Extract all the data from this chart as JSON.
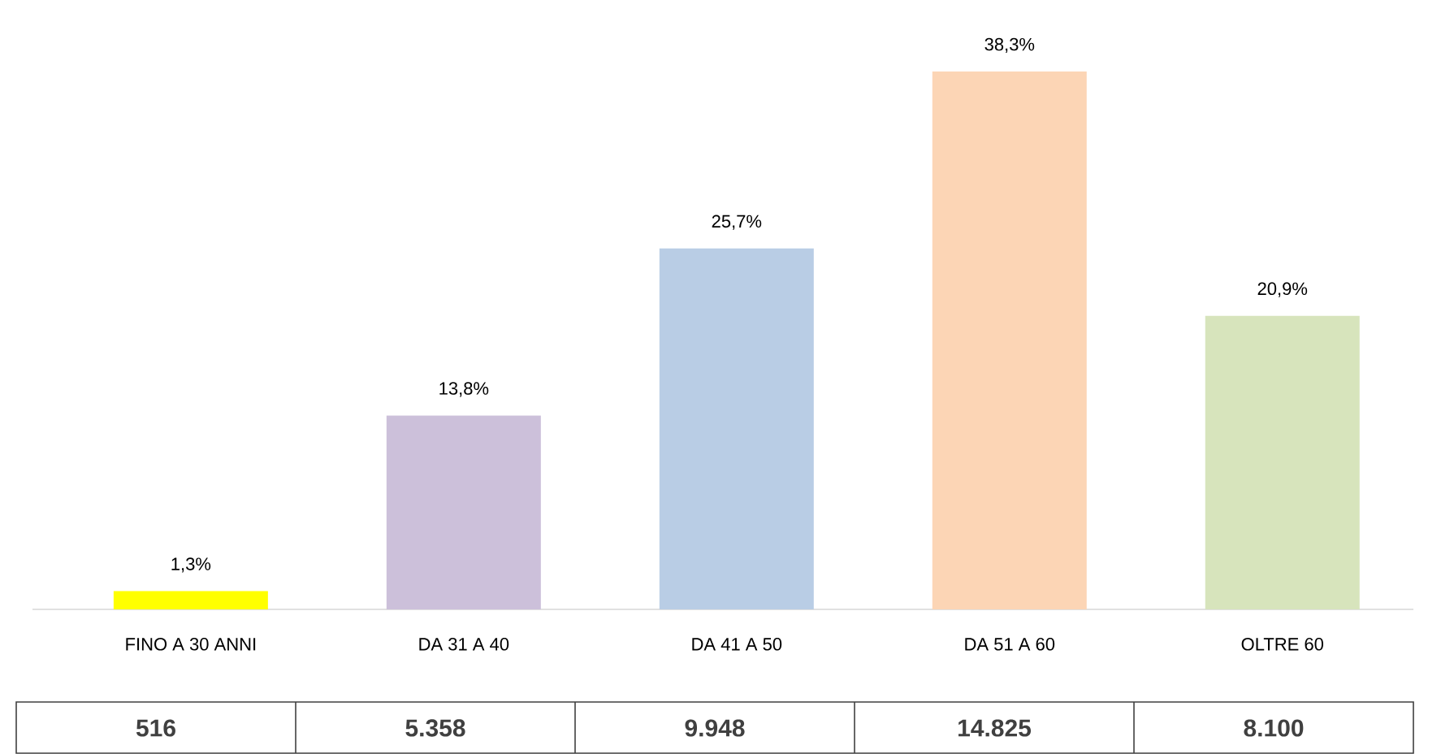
{
  "chart_data": {
    "type": "bar",
    "categories": [
      "FINO A 30 ANNI",
      "DA 31 A 40",
      "DA 41 A 50",
      "DA 51 A 60",
      "OLTRE 60"
    ],
    "values": [
      1.3,
      13.8,
      25.7,
      38.3,
      20.9
    ],
    "colors": [
      "#ffff00",
      "#ccc0da",
      "#b9cde5",
      "#fcd5b5",
      "#d7e4bc"
    ],
    "value_labels": [
      "1,3%",
      "13,8%",
      "25,7%",
      "38,3%",
      "20,9%"
    ],
    "annotations": [
      "516",
      "5.358",
      "9.948",
      "14.825",
      "8.100"
    ]
  }
}
